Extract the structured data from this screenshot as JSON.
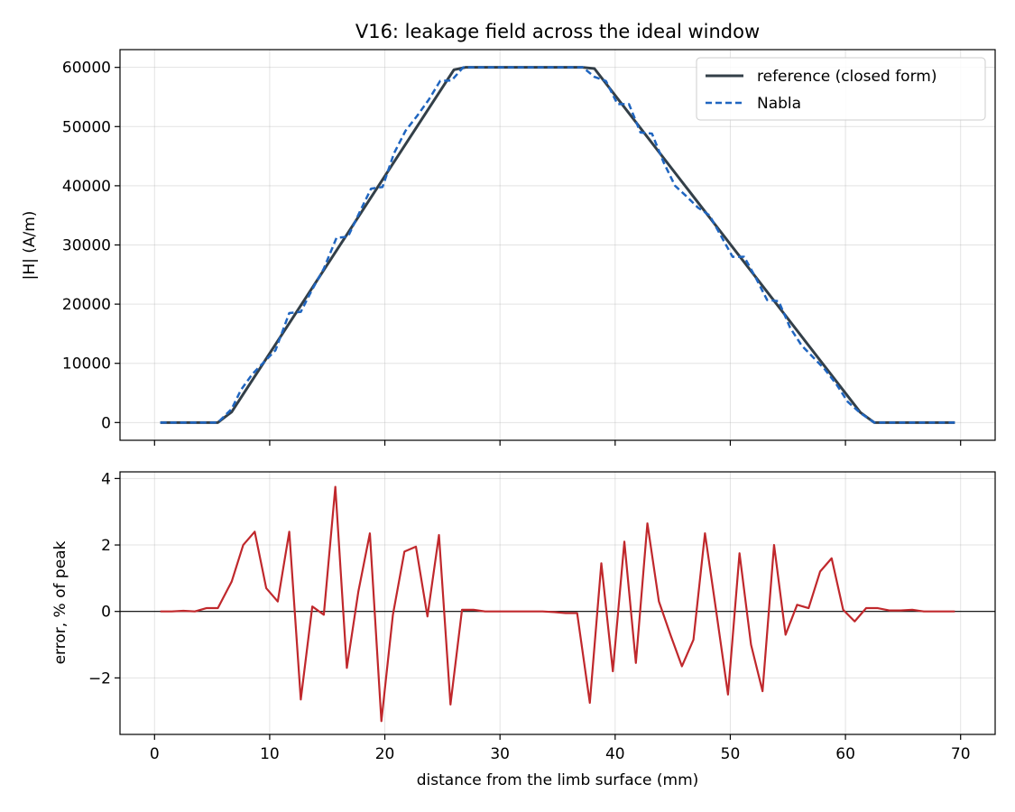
{
  "chart_data": [
    {
      "type": "line",
      "title": "V16: leakage field across the ideal window",
      "xlabel": "",
      "ylabel": "|H| (A/m)",
      "xlim": [
        -3,
        73
      ],
      "ylim": [
        -3000,
        63000
      ],
      "xticks": [
        0,
        10,
        20,
        30,
        40,
        50,
        60,
        70
      ],
      "yticks": [
        0,
        10000,
        20000,
        30000,
        40000,
        50000,
        60000
      ],
      "grid": true,
      "legend_position": "top-right",
      "series": [
        {
          "name": "reference (closed form)",
          "color": "#333f48",
          "style": "solid",
          "x": [
            0.5,
            5.5,
            6.7,
            26.0,
            27.0,
            37.2,
            38.2,
            61.3,
            62.5,
            69.5
          ],
          "y": [
            0,
            0,
            1800,
            59600,
            60000,
            60000,
            59800,
            1700,
            0,
            0
          ]
        },
        {
          "name": "Nabla",
          "color": "#1f65c0",
          "style": "dashed",
          "x": [
            0.5,
            5.5,
            6.7,
            7.5,
            8.5,
            9.5,
            10.5,
            11.7,
            12.7,
            13.7,
            14.7,
            15.8,
            16.8,
            17.8,
            18.8,
            19.8,
            20.8,
            21.8,
            22.8,
            23.8,
            24.8,
            25.8,
            26.8,
            37.2,
            38.2,
            39.2,
            40.2,
            41.2,
            42.2,
            43.2,
            44.2,
            45.2,
            46.2,
            47.2,
            48.2,
            49.2,
            50.2,
            51.2,
            52.2,
            53.2,
            54.2,
            55.2,
            56.2,
            57.2,
            58.2,
            59.2,
            60.2,
            61.3,
            62.5,
            69.5
          ],
          "y": [
            0,
            0,
            2300,
            5500,
            8200,
            10200,
            12200,
            18500,
            18700,
            22500,
            26000,
            31200,
            31400,
            35500,
            39500,
            39800,
            45500,
            49300,
            51800,
            54500,
            57700,
            57800,
            60000,
            60000,
            58400,
            57700,
            53800,
            53800,
            49000,
            48800,
            44000,
            40000,
            38200,
            36300,
            35000,
            31500,
            28000,
            28000,
            24500,
            20700,
            20500,
            16000,
            13000,
            11000,
            9000,
            6500,
            3500,
            1600,
            0,
            0
          ]
        }
      ]
    },
    {
      "type": "line",
      "title": "",
      "xlabel": "distance from the limb surface (mm)",
      "ylabel": "error, % of peak",
      "xlim": [
        -3,
        73
      ],
      "ylim": [
        -3.7,
        4.2
      ],
      "xticks": [
        0,
        10,
        20,
        30,
        40,
        50,
        60,
        70
      ],
      "xtick_labels": [
        "0",
        "10",
        "20",
        "30",
        "40",
        "50",
        "60",
        "70"
      ],
      "yticks": [
        -2,
        0,
        2,
        4
      ],
      "ytick_labels": [
        "−2",
        "0",
        "2",
        "4"
      ],
      "grid": true,
      "reference_line_y": 0,
      "series": [
        {
          "color": "#c0282c",
          "style": "solid",
          "x": [
            0.5,
            1.5,
            2.5,
            3.5,
            4.5,
            5.5,
            6.7,
            7.7,
            8.7,
            9.7,
            10.7,
            11.7,
            12.7,
            13.7,
            14.7,
            15.7,
            16.7,
            17.7,
            18.7,
            19.7,
            20.7,
            21.7,
            22.7,
            23.7,
            24.7,
            25.7,
            26.7,
            27.7,
            28.7,
            29.7,
            30.7,
            31.7,
            32.7,
            33.7,
            34.7,
            35.7,
            36.7,
            37.8,
            38.8,
            39.8,
            40.8,
            41.8,
            42.8,
            43.8,
            44.8,
            45.8,
            46.8,
            47.8,
            48.8,
            49.8,
            50.8,
            51.8,
            52.8,
            53.8,
            54.8,
            55.8,
            56.8,
            57.8,
            58.8,
            59.8,
            60.8,
            61.8,
            62.8,
            63.8,
            64.8,
            65.8,
            66.8,
            67.8,
            68.8,
            69.5
          ],
          "y": [
            0,
            0,
            0.02,
            0,
            0.1,
            0.1,
            0.9,
            2.0,
            2.4,
            0.7,
            0.3,
            2.4,
            -2.65,
            0.15,
            -0.1,
            3.75,
            -1.7,
            0.6,
            2.35,
            -3.3,
            -0.1,
            1.8,
            1.95,
            -0.15,
            2.3,
            -2.8,
            0.05,
            0.05,
            0,
            0,
            0,
            0,
            0,
            0,
            -0.02,
            -0.05,
            -0.05,
            -2.75,
            1.45,
            -1.8,
            2.1,
            -1.55,
            2.65,
            0.3,
            -0.7,
            -1.65,
            -0.85,
            2.35,
            -0.05,
            -2.5,
            1.75,
            -1.0,
            -2.4,
            2.0,
            -0.7,
            0.2,
            0.1,
            1.2,
            1.6,
            0.05,
            -0.3,
            0.1,
            0.1,
            0.03,
            0.03,
            0.05,
            0,
            0,
            0,
            0
          ]
        }
      ]
    }
  ]
}
